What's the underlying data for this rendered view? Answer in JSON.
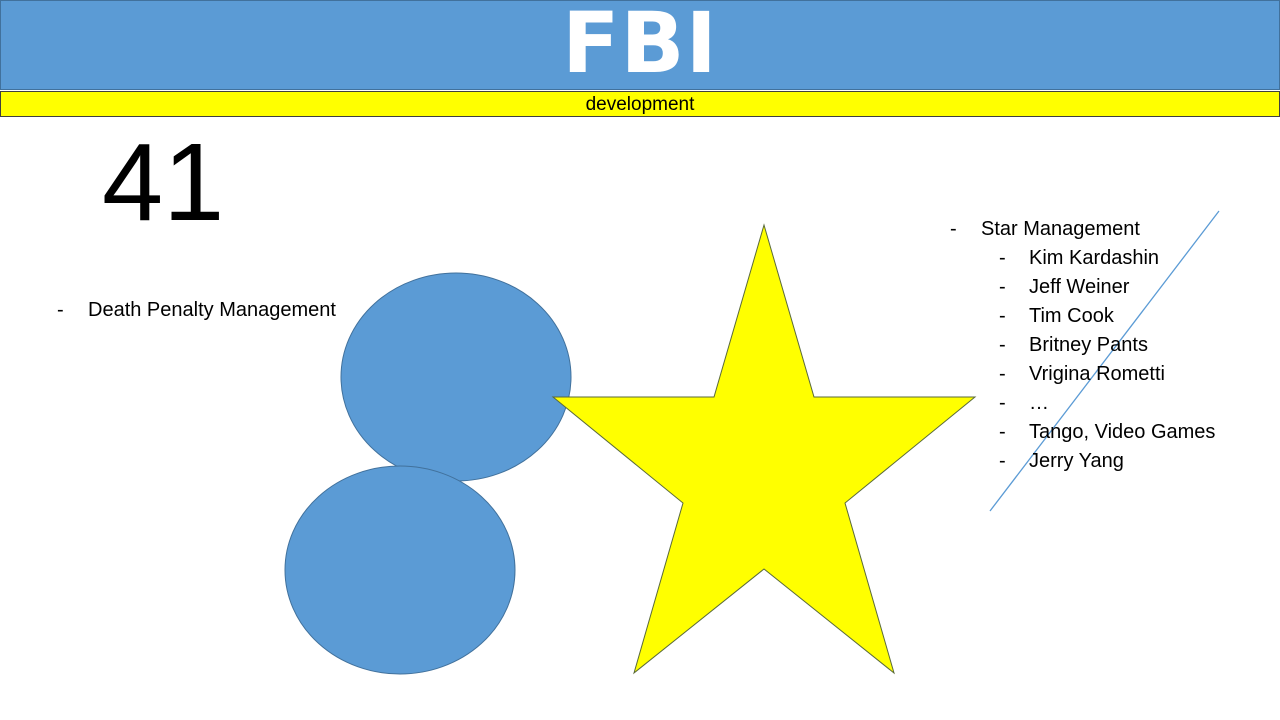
{
  "header": {
    "title": "FBI",
    "subtitle": "development"
  },
  "big_number": "41",
  "left_list": {
    "dash": "-",
    "items": [
      "Death Penalty Management"
    ]
  },
  "right_list": {
    "dash": "-",
    "heading": "Star Management",
    "items": [
      "Kim Kardashin",
      "Jeff Weiner",
      "Tim Cook",
      "Britney Pants",
      "Vrigina Rometti",
      "…",
      "Tango, Video Games",
      "Jerry Yang"
    ]
  },
  "colors": {
    "title_bar": "#5b9bd5",
    "subtitle_bar": "#ffff00",
    "circle_fill": "#5b9bd5",
    "star_fill": "#ffff00"
  }
}
